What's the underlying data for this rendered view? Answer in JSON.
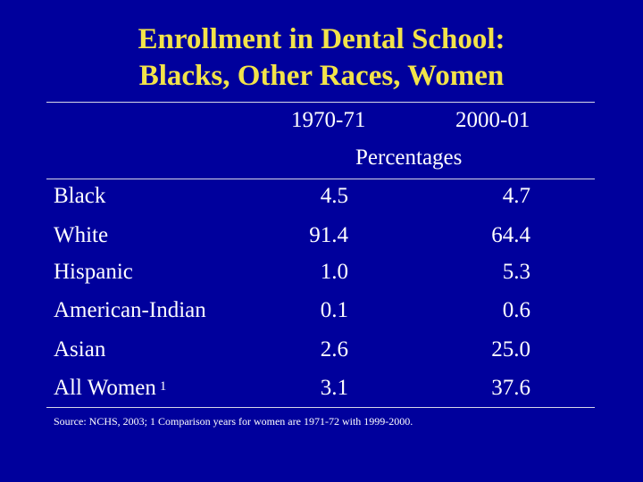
{
  "slide": {
    "title_line1": "Enrollment in Dental School:",
    "title_line2": "Blacks, Other Races, Women",
    "source": "Source: NCHS, 2003; 1 Comparison years for women are 1971-72 with 1999-2000.",
    "colors": {
      "background": "#00009c",
      "title": "#f2e34a",
      "text": "#ffffff"
    }
  },
  "chart_data": {
    "type": "table",
    "title": "Enrollment in Dental School: Blacks, Other Races, Women",
    "columns": [
      "1970-71",
      "2000-01"
    ],
    "unit_label": "Percentages",
    "rows": [
      {
        "label": "Black",
        "values": [
          "4.5",
          "4.7"
        ]
      },
      {
        "label": "White",
        "values": [
          "91.4",
          "64.4"
        ]
      },
      {
        "label": "Hispanic",
        "values": [
          "1.0",
          "5.3"
        ]
      },
      {
        "label": "American-Indian",
        "values": [
          "0.1",
          "0.6"
        ]
      },
      {
        "label": "Asian",
        "values": [
          "2.6",
          "25.0"
        ]
      },
      {
        "label": "All Women",
        "footnote": "1",
        "values": [
          "3.1",
          "37.6"
        ]
      }
    ]
  }
}
